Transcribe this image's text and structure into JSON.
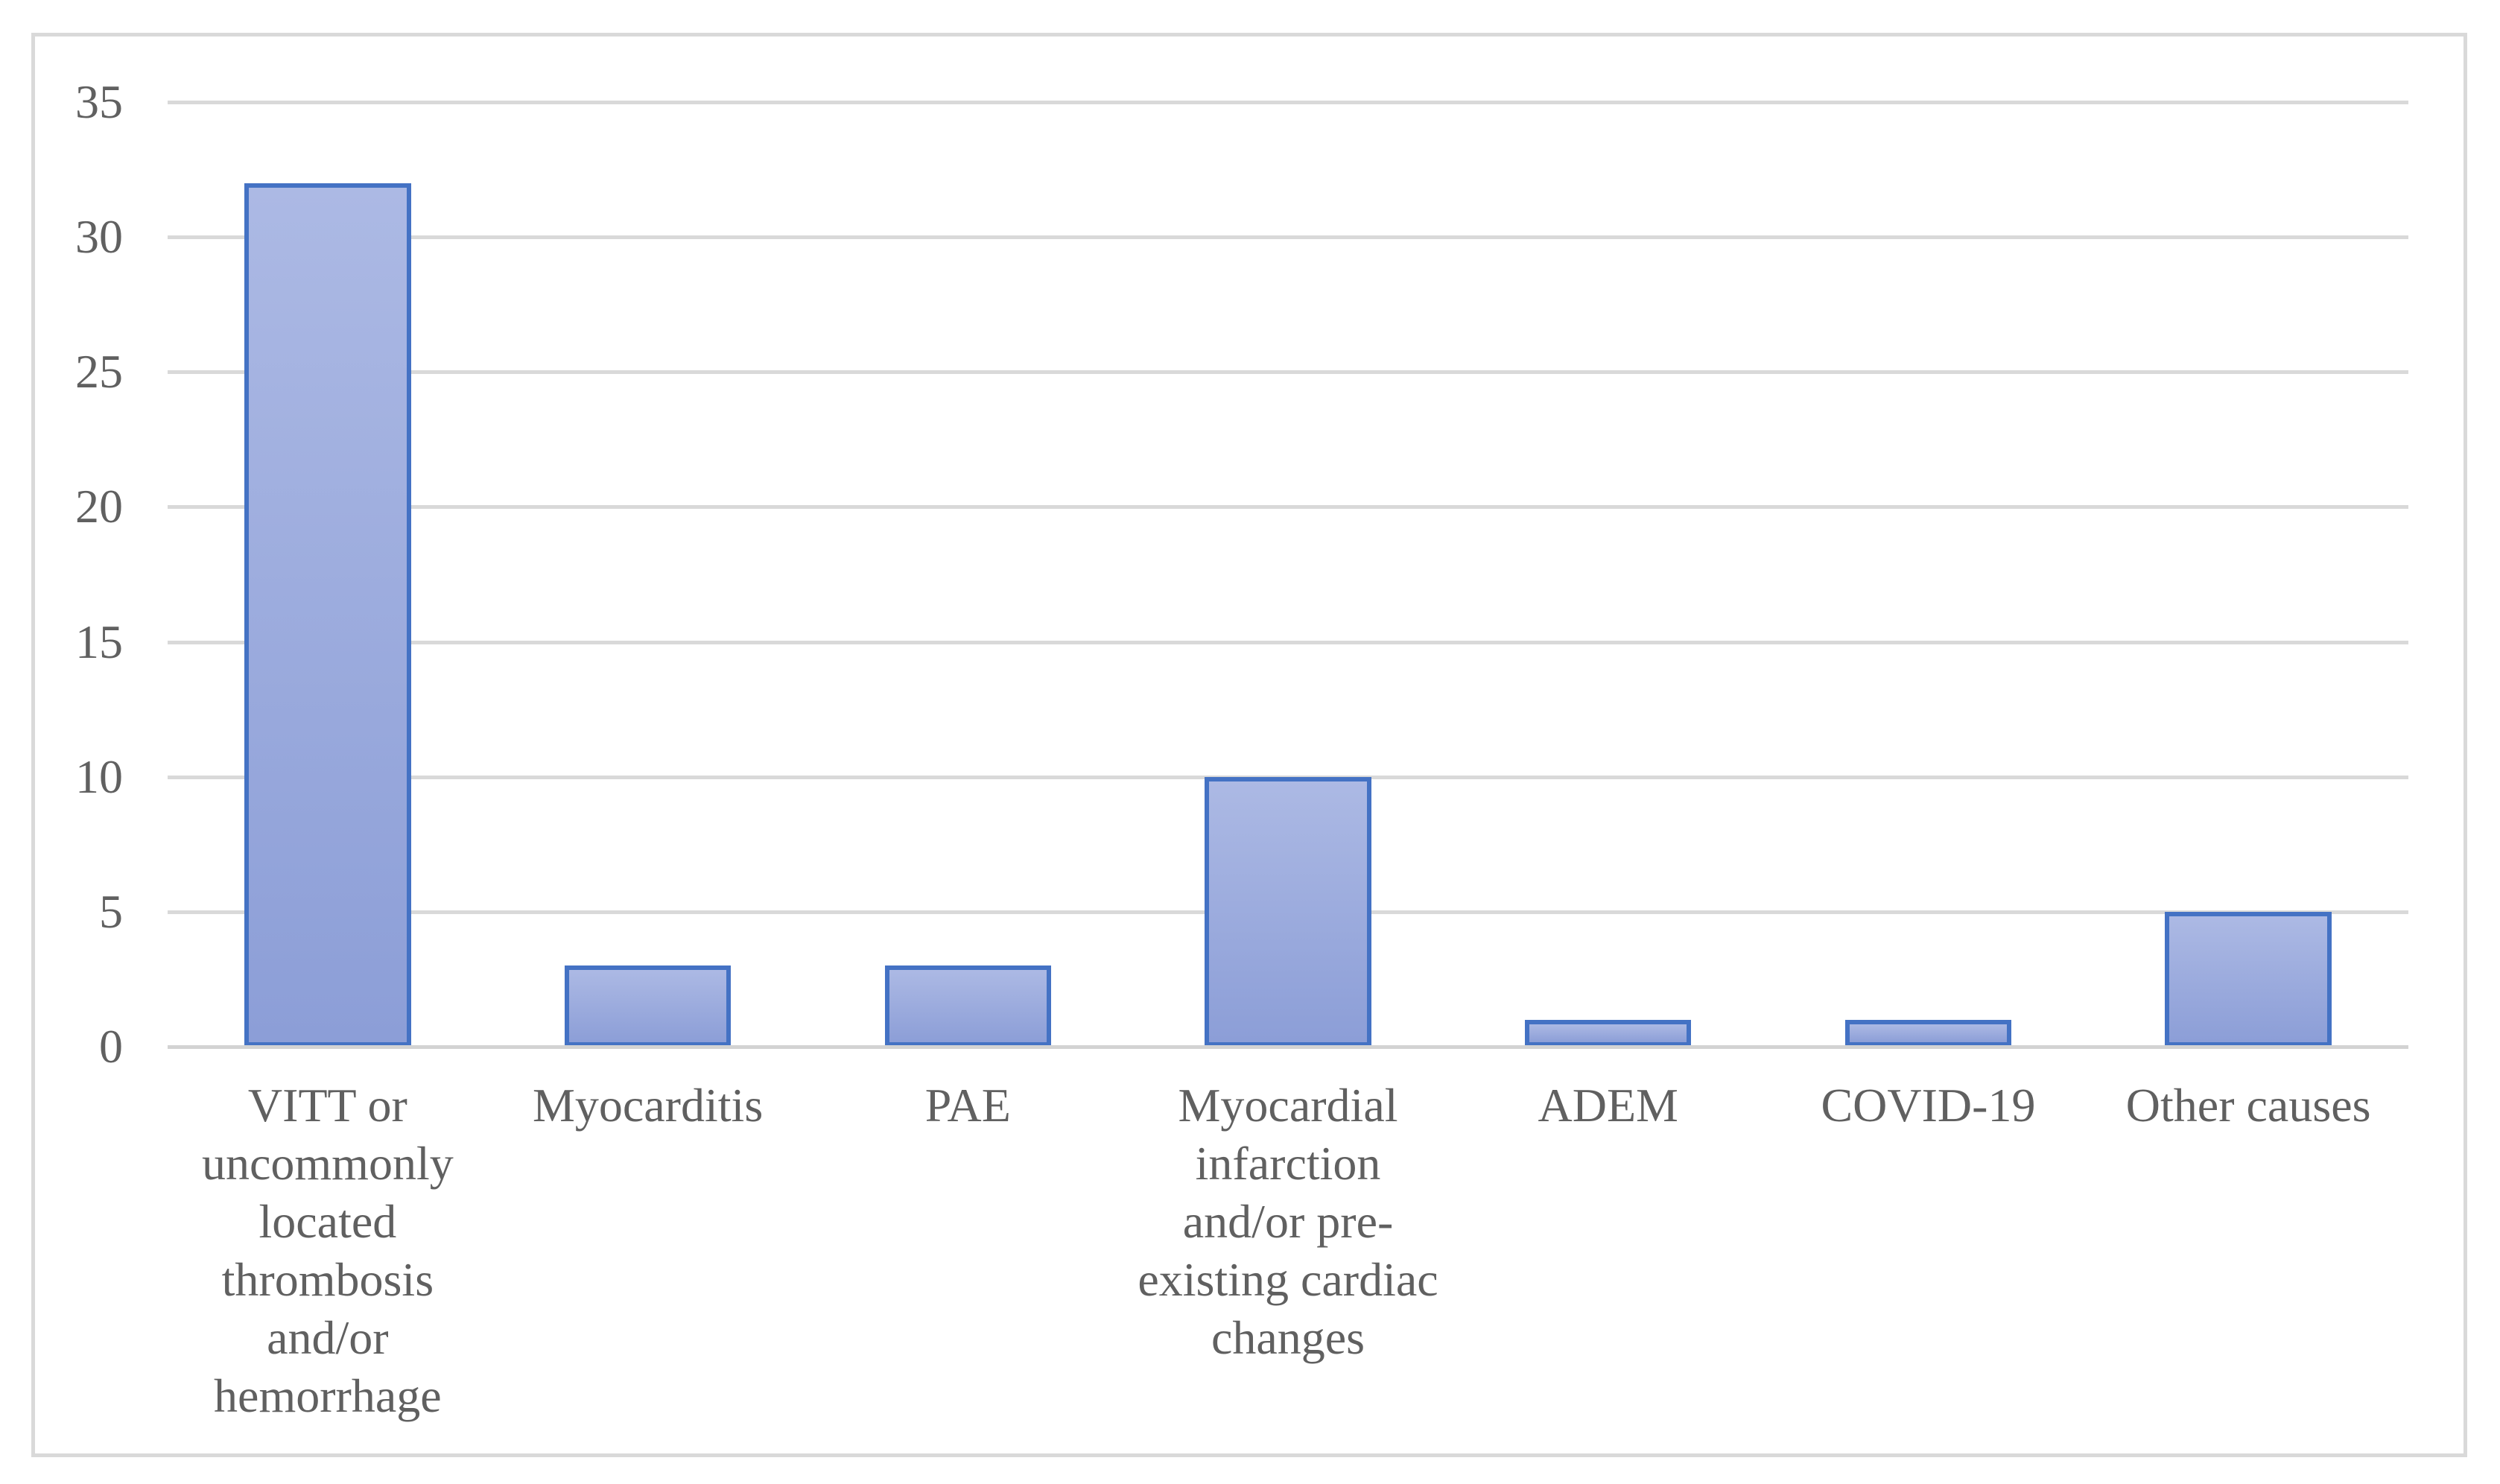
{
  "chart_data": {
    "type": "bar",
    "title": "",
    "xlabel": "",
    "ylabel": "",
    "categories": [
      "VITT or uncommonly located thrombosis and/or hemorrhage",
      "Myocarditis",
      "PAE",
      "Myocardial infarction and/or pre-existing cardiac changes",
      "ADEM",
      "COVID-19",
      "Other causes"
    ],
    "values": [
      32,
      3,
      3,
      10,
      1,
      1,
      5
    ],
    "ylim": [
      0,
      35
    ],
    "yticks": [
      0,
      5,
      10,
      15,
      20,
      25,
      30,
      35
    ],
    "grid": "horizontal",
    "legend": false,
    "colors": {
      "bar_fill_top": "#acb9e4",
      "bar_fill_bottom": "#8c9ed7",
      "bar_border": "#4472c4",
      "gridline": "#d9d9d9",
      "axis_line": "#d3d3d3",
      "tick_text": "#606060",
      "frame_border": "#d9d9d9",
      "background": "#ffffff"
    }
  }
}
